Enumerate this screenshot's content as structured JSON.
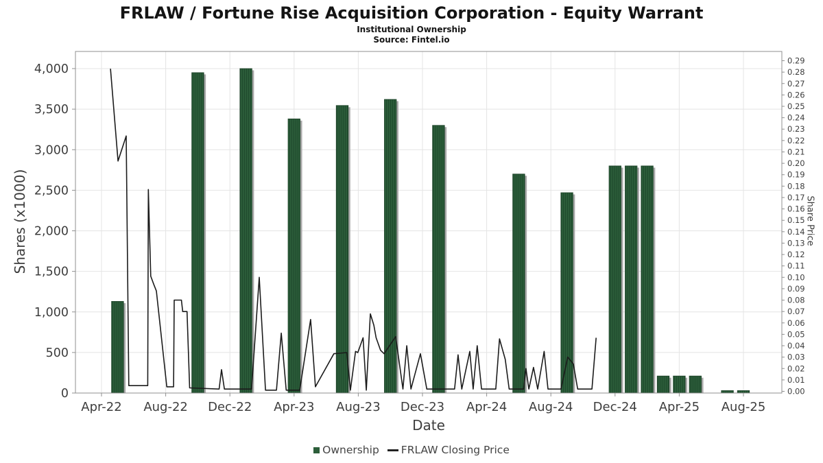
{
  "header": {
    "title": "FRLAW / Fortune Rise Acquisition Corporation - Equity Warrant",
    "subtitle": "Institutional Ownership",
    "source": "Source: Fintel.io"
  },
  "legend": {
    "ownership": "Ownership",
    "price": "FRLAW Closing Price"
  },
  "axes": {
    "left_title": "Shares (x1000)",
    "right_title": "Share Price",
    "x_title": "Date"
  },
  "colors": {
    "bar_green": "#2c5e3a",
    "bar_stripe": "#1f4a2d",
    "bar_edge": "#1d4228",
    "bar_shadow": "#a8a8a8",
    "line": "#1b1b1b",
    "grid": "#e4e4e4",
    "axis": "#8f8f8f",
    "tick_text": "#3d3d3d"
  },
  "chart_data": {
    "type": "bar+line",
    "title": "FRLAW / Fortune Rise Acquisition Corporation - Equity Warrant",
    "xlabel": "Date",
    "ylabel_left": "Shares (x1000)",
    "ylabel_right": "Share Price",
    "left_range": [
      0,
      4000
    ],
    "right_range": [
      0.0,
      0.29
    ],
    "grid": true,
    "legend_position": "bottom",
    "x_ticks": [
      "Apr-22",
      "Aug-22",
      "Dec-22",
      "Apr-23",
      "Aug-23",
      "Dec-23",
      "Apr-24",
      "Aug-24",
      "Dec-24",
      "Apr-25",
      "Aug-25"
    ],
    "x_tick_month_index": [
      0,
      4,
      8,
      12,
      16,
      20,
      24,
      28,
      32,
      36,
      40
    ],
    "left_ticks": [
      "0",
      "500",
      "1,000",
      "1,500",
      "2,000",
      "2,500",
      "3,000",
      "3,500",
      "4,000"
    ],
    "right_ticks": [
      "0.00",
      "0.01",
      "0.02",
      "0.03",
      "0.04",
      "0.05",
      "0.06",
      "0.07",
      "0.08",
      "0.09",
      "0.10",
      "0.11",
      "0.12",
      "0.13",
      "0.14",
      "0.15",
      "0.16",
      "0.17",
      "0.18",
      "0.19",
      "0.20",
      "0.21",
      "0.22",
      "0.23",
      "0.24",
      "0.25",
      "0.26",
      "0.27",
      "0.28",
      "0.29"
    ],
    "bars": {
      "name": "Ownership",
      "unit": "shares x1000",
      "months": [
        "May-22",
        "Oct-22",
        "Jan-23",
        "Apr-23",
        "Jul-23",
        "Oct-23",
        "Jan-24",
        "Jun-24",
        "Sep-24",
        "Dec-24",
        "Jan-25",
        "Feb-25",
        "Mar-25",
        "Apr-25",
        "May-25",
        "Jul-25",
        "Aug-25"
      ],
      "month_index": [
        1,
        6,
        9,
        12,
        15,
        18,
        21,
        26,
        29,
        32,
        33,
        34,
        35,
        36,
        37,
        39,
        40
      ],
      "values": [
        1130,
        3950,
        4000,
        3380,
        3545,
        3620,
        3300,
        2700,
        2470,
        2800,
        2800,
        2800,
        210,
        210,
        210,
        30,
        30
      ]
    },
    "line": {
      "name": "FRLAW Closing Price",
      "unit": "USD",
      "points": [
        [
          0.56,
          0.283
        ],
        [
          1.03,
          0.202
        ],
        [
          1.54,
          0.224
        ],
        [
          1.7,
          0.005
        ],
        [
          2.88,
          0.005
        ],
        [
          2.92,
          0.177
        ],
        [
          3.07,
          0.101
        ],
        [
          3.25,
          0.094
        ],
        [
          3.42,
          0.088
        ],
        [
          4.07,
          0.004
        ],
        [
          4.49,
          0.004
        ],
        [
          4.53,
          0.08
        ],
        [
          4.98,
          0.08
        ],
        [
          5.06,
          0.07
        ],
        [
          5.33,
          0.07
        ],
        [
          5.49,
          0.003
        ],
        [
          7.33,
          0.002
        ],
        [
          7.48,
          0.019
        ],
        [
          7.66,
          0.002
        ],
        [
          9.35,
          0.002
        ],
        [
          9.83,
          0.1
        ],
        [
          10.22,
          0.001
        ],
        [
          10.9,
          0.001
        ],
        [
          11.2,
          0.051
        ],
        [
          11.51,
          0.001
        ],
        [
          12.35,
          0.001
        ],
        [
          13.03,
          0.063
        ],
        [
          13.33,
          0.004
        ],
        [
          14.48,
          0.033
        ],
        [
          15.28,
          0.034
        ],
        [
          15.51,
          0.001
        ],
        [
          15.83,
          0.035
        ],
        [
          15.97,
          0.034
        ],
        [
          16.3,
          0.047
        ],
        [
          16.5,
          0.001
        ],
        [
          16.75,
          0.068
        ],
        [
          16.97,
          0.058
        ],
        [
          17.11,
          0.047
        ],
        [
          17.39,
          0.036
        ],
        [
          17.61,
          0.033
        ],
        [
          18.33,
          0.048
        ],
        [
          18.78,
          0.002
        ],
        [
          19.02,
          0.04
        ],
        [
          19.28,
          0.002
        ],
        [
          19.87,
          0.033
        ],
        [
          20.27,
          0.002
        ],
        [
          22.0,
          0.002
        ],
        [
          22.22,
          0.032
        ],
        [
          22.45,
          0.002
        ],
        [
          22.95,
          0.035
        ],
        [
          23.16,
          0.002
        ],
        [
          23.41,
          0.04
        ],
        [
          23.68,
          0.002
        ],
        [
          24.57,
          0.002
        ],
        [
          24.8,
          0.046
        ],
        [
          25.16,
          0.028
        ],
        [
          25.4,
          0.002
        ],
        [
          26.3,
          0.002
        ],
        [
          26.45,
          0.02
        ],
        [
          26.63,
          0.002
        ],
        [
          26.92,
          0.021
        ],
        [
          27.18,
          0.002
        ],
        [
          27.58,
          0.035
        ],
        [
          27.82,
          0.002
        ],
        [
          28.63,
          0.002
        ],
        [
          29.05,
          0.03
        ],
        [
          29.4,
          0.024
        ],
        [
          29.67,
          0.002
        ],
        [
          30.56,
          0.002
        ],
        [
          30.82,
          0.047
        ]
      ]
    }
  }
}
